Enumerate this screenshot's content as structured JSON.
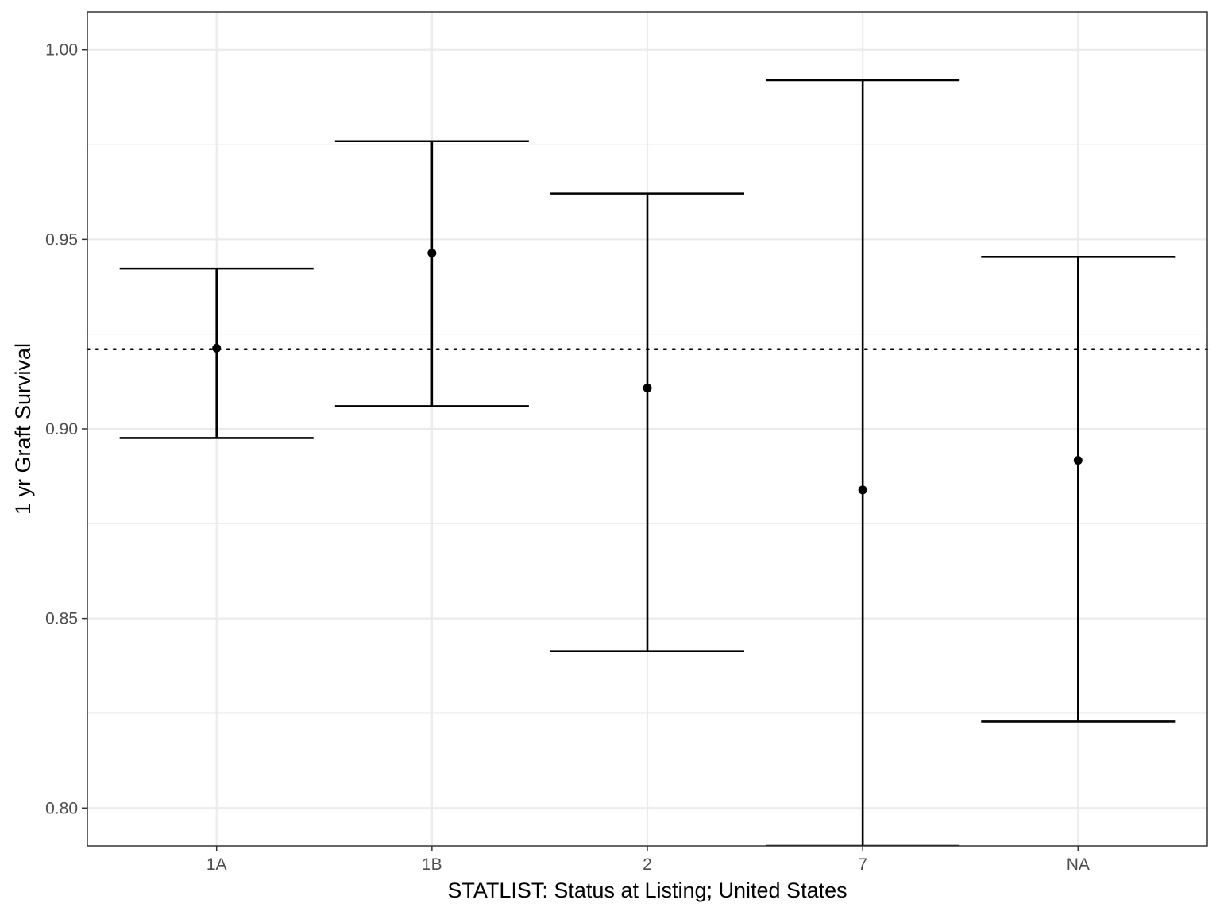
{
  "chart_data": {
    "type": "errorbar",
    "xlabel": "STATLIST: Status at Listing; United States",
    "ylabel": "1 yr Graft Survival",
    "categories": [
      "1A",
      "1B",
      "2",
      "7",
      "NA"
    ],
    "points": [
      {
        "category": "1A",
        "estimate": 0.9213,
        "lower": 0.8976,
        "upper": 0.9423
      },
      {
        "category": "1B",
        "estimate": 0.9464,
        "lower": 0.906,
        "upper": 0.9759
      },
      {
        "category": "2",
        "estimate": 0.9108,
        "lower": 0.8414,
        "upper": 0.9621
      },
      {
        "category": "7",
        "estimate": 0.8839,
        "lower": 0.79,
        "upper": 0.992
      },
      {
        "category": "NA",
        "estimate": 0.8917,
        "lower": 0.8228,
        "upper": 0.9454
      }
    ],
    "reference_line": {
      "value": 0.921,
      "style": "dotted"
    },
    "ylim": [
      0.79,
      1.01
    ],
    "yticks": [
      0.8,
      0.85,
      0.9,
      0.95,
      1.0
    ],
    "ytick_labels": [
      "0.80",
      "0.85",
      "0.90",
      "0.95",
      "1.00"
    ],
    "grid": true,
    "legend": "none",
    "colors": {
      "marks": "#000000",
      "grid": "#ebebeb",
      "panel_border": "#333333",
      "tick_text": "#4d4d4d"
    }
  }
}
